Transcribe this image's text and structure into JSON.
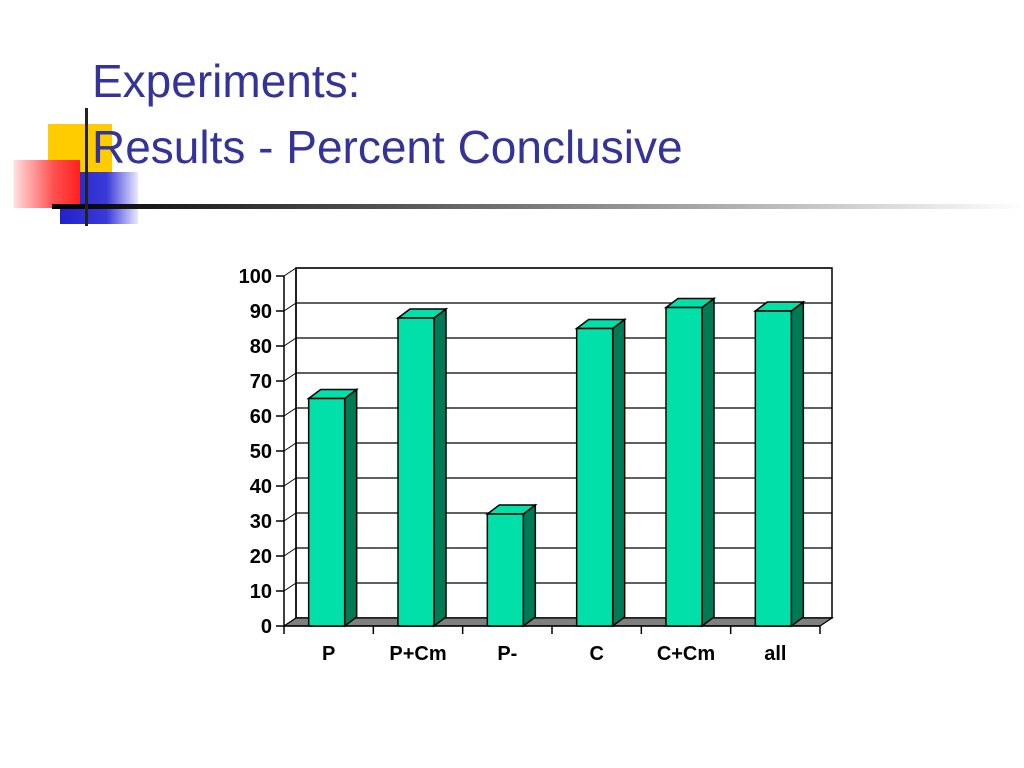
{
  "slide": {
    "title_line1": "Experiments:",
    "title_line2": "Results - Percent Conclusive",
    "title_color": "#33339a"
  },
  "chart_data": {
    "type": "bar",
    "categories": [
      "P",
      "P+Cm",
      "P-",
      "C",
      "C+Cm",
      "all"
    ],
    "values": [
      65,
      88,
      32,
      85,
      91,
      90
    ],
    "ylim": [
      0,
      100
    ],
    "yticks": [
      0,
      10,
      20,
      30,
      40,
      50,
      60,
      70,
      80,
      90,
      100
    ],
    "grid": true,
    "legend": "none",
    "bar_color": "#00e0a8",
    "bar_side_color": "#007a55",
    "floor_color": "#808080"
  }
}
